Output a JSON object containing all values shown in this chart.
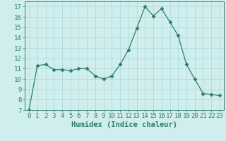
{
  "x": [
    0,
    1,
    2,
    3,
    4,
    5,
    6,
    7,
    8,
    9,
    10,
    11,
    12,
    13,
    14,
    15,
    16,
    17,
    18,
    19,
    20,
    21,
    22,
    23
  ],
  "y": [
    7.0,
    11.3,
    11.4,
    10.9,
    10.9,
    10.8,
    11.0,
    11.0,
    10.3,
    10.0,
    10.3,
    11.4,
    12.8,
    14.9,
    17.0,
    16.1,
    16.8,
    15.5,
    14.2,
    11.4,
    10.0,
    8.6,
    8.5,
    8.4
  ],
  "line_color": "#2e7d6e",
  "marker": "D",
  "marker_size": 2.5,
  "bg_color": "#d0eeee",
  "grid_color": "#a8d8d8",
  "xlabel": "Humidex (Indice chaleur)",
  "xlim": [
    -0.5,
    23.5
  ],
  "ylim": [
    7,
    17.5
  ],
  "yticks": [
    7,
    8,
    9,
    10,
    11,
    12,
    13,
    14,
    15,
    16,
    17
  ],
  "xticks": [
    0,
    1,
    2,
    3,
    4,
    5,
    6,
    7,
    8,
    9,
    10,
    11,
    12,
    13,
    14,
    15,
    16,
    17,
    18,
    19,
    20,
    21,
    22,
    23
  ],
  "tick_color": "#2e7d6e",
  "label_color": "#2e7d6e",
  "font_size_axis": 6.5,
  "font_size_label": 7.5
}
